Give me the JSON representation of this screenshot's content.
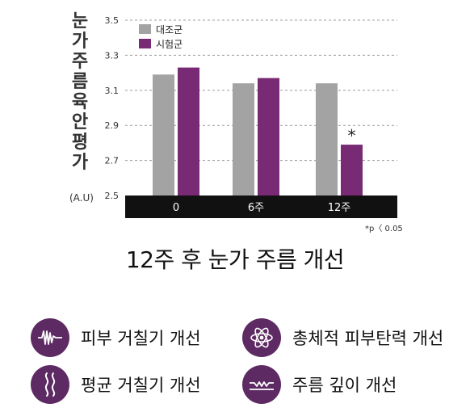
{
  "chart_data": {
    "type": "bar",
    "ylabel": "눈가주름 육안평가",
    "yunit": "(A.U)",
    "categories": [
      "0",
      "6주",
      "12주"
    ],
    "series": [
      {
        "name": "대조군",
        "color": "#a3a3a3",
        "values": [
          3.19,
          3.14,
          3.14
        ]
      },
      {
        "name": "시험군",
        "color": "#792a74",
        "values": [
          3.23,
          3.17,
          2.79
        ]
      }
    ],
    "ylim": [
      2.5,
      3.5
    ],
    "yticks": [
      "3.5",
      "3.3",
      "3.1",
      "2.9",
      "2.7",
      "2.5"
    ],
    "grid": true,
    "legend": "top-left",
    "significance": {
      "marker": "*",
      "category_index": 2,
      "series_index": 1
    },
    "footnote": "*p〈 0.05"
  },
  "caption": "12주 후 눈가 주름 개선",
  "benefits": [
    {
      "label": "피부 거칠기 개선",
      "icon": "wave-icon"
    },
    {
      "label": "총체적 피부탄력 개선",
      "icon": "atom-icon"
    },
    {
      "label": "평균 거칠기 개선",
      "icon": "squiggle-icon"
    },
    {
      "label": "주름 깊이 개선",
      "icon": "wrinkle-depth-icon"
    }
  ]
}
